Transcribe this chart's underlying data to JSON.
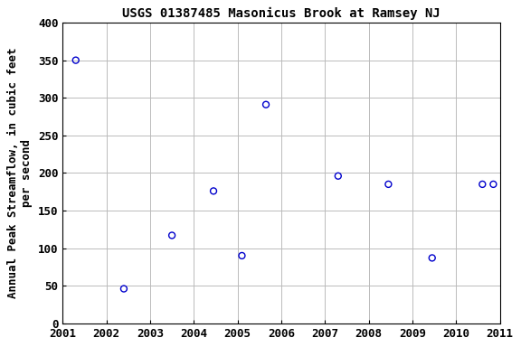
{
  "title": "USGS 01387485 Masonicus Brook at Ramsey NJ",
  "ylabel": "Annual Peak Streamflow, in cubic feet\nper second",
  "x_vals": [
    2001.3,
    2002.4,
    2003.5,
    2004.45,
    2005.1,
    2005.65,
    2007.3,
    2008.45,
    2009.45,
    2010.6,
    2010.85
  ],
  "y_vals": [
    350,
    46,
    117,
    176,
    90,
    291,
    196,
    185,
    87,
    185,
    185
  ],
  "xlim": [
    2001,
    2011
  ],
  "ylim": [
    0,
    400
  ],
  "xticks": [
    2001,
    2002,
    2003,
    2004,
    2005,
    2006,
    2007,
    2008,
    2009,
    2010,
    2011
  ],
  "yticks": [
    0,
    50,
    100,
    150,
    200,
    250,
    300,
    350,
    400
  ],
  "marker_color": "#0000cc",
  "marker_size": 5,
  "grid_color": "#bbbbbb",
  "bg_color": "#ffffff",
  "title_fontsize": 10,
  "label_fontsize": 9,
  "tick_fontsize": 9
}
